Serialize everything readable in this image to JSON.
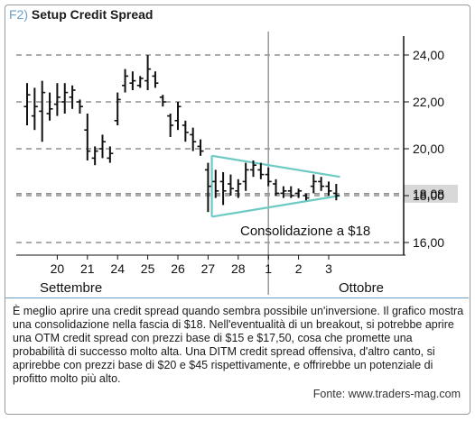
{
  "figure": {
    "tag": "F2)",
    "title": "Setup Credit Spread",
    "caption": "È meglio aprire una credit spread quando sembra possibile un'inversione. Il grafico mostra una consolidazione nella fascia di $18. Nell'eventualità di un breakout, si potrebbe aprire una OTM credit spread con prezzi base di $15 e $17,50, cosa che promette una probabilità di successo molto alta. Una DITM credit spread offensiva, d'altro canto, si aprirebbe con prezzi base di $20 e $45 rispettivamente, e offrirebbe un potenziale di profitto molto più alto.",
    "source": "Fonte: www.traders-mag.com"
  },
  "chart_data": {
    "type": "bar",
    "subtype": "ohlc",
    "ylim": [
      15.5,
      25.0
    ],
    "y_ticks": [
      "24,00",
      "22,00",
      "20,00",
      "18,00",
      "16,00"
    ],
    "y_tick_values": [
      24,
      22,
      20,
      18,
      16
    ],
    "grid": "dashed horizontal",
    "current_price_label": "18,08",
    "current_price": 18.08,
    "x_tick_labels": [
      "20",
      "21",
      "24",
      "25",
      "26",
      "27",
      "28",
      "1",
      "2",
      "3"
    ],
    "x_tick_index": [
      4,
      8,
      12,
      16,
      20,
      24,
      28,
      32,
      36,
      40
    ],
    "month_labels": [
      "Settembre",
      "Ottobre"
    ],
    "annotation": "Consolidazione a $18",
    "triangle": {
      "start_index": 24.5,
      "end_index": 41.5,
      "upper": [
        19.7,
        18.8
      ],
      "lower": [
        17.1,
        18.0
      ]
    },
    "colors": {
      "bars": "#111111",
      "triangle": "#6cc9c4",
      "price_box": "#d8d8d8",
      "accent": "#6aa0c8"
    },
    "bars": [
      {
        "h": 22.8,
        "l": 21.0,
        "o": 21.8,
        "c": 22.3
      },
      {
        "h": 22.6,
        "l": 20.8,
        "o": 21.4,
        "c": 21.8
      },
      {
        "h": 22.9,
        "l": 20.3,
        "o": 21.6,
        "c": 22.4
      },
      {
        "h": 22.4,
        "l": 21.2,
        "o": 21.5,
        "c": 21.7
      },
      {
        "h": 22.8,
        "l": 21.4,
        "o": 21.9,
        "c": 22.2
      },
      {
        "h": 22.8,
        "l": 21.5,
        "o": 22.0,
        "c": 22.4
      },
      {
        "h": 22.7,
        "l": 21.7,
        "o": 22.2,
        "c": 22.5
      },
      {
        "h": 22.1,
        "l": 21.5,
        "o": 22.0,
        "c": 21.8
      },
      {
        "h": 21.5,
        "l": 19.5,
        "o": 20.8,
        "c": 19.9
      },
      {
        "h": 20.1,
        "l": 19.3,
        "o": 19.6,
        "c": 19.9
      },
      {
        "h": 20.6,
        "l": 19.6,
        "o": 20.0,
        "c": 20.3
      },
      {
        "h": 20.1,
        "l": 19.4,
        "o": 19.6,
        "c": 19.8
      },
      {
        "h": 22.4,
        "l": 21.0,
        "o": 21.2,
        "c": 22.1
      },
      {
        "h": 23.4,
        "l": 22.4,
        "o": 22.7,
        "c": 23.1
      },
      {
        "h": 23.3,
        "l": 22.5,
        "o": 22.8,
        "c": 22.9
      },
      {
        "h": 23.1,
        "l": 22.6,
        "o": 22.7,
        "c": 23.0
      },
      {
        "h": 24.0,
        "l": 22.5,
        "o": 22.9,
        "c": 23.4
      },
      {
        "h": 23.3,
        "l": 22.6,
        "o": 23.1,
        "c": 22.8
      },
      {
        "h": 22.3,
        "l": 21.8,
        "o": 22.2,
        "c": 22.0
      },
      {
        "h": 21.5,
        "l": 20.5,
        "o": 21.4,
        "c": 21.0
      },
      {
        "h": 22.0,
        "l": 20.8,
        "o": 21.2,
        "c": 21.8
      },
      {
        "h": 21.2,
        "l": 20.3,
        "o": 21.0,
        "c": 20.7
      },
      {
        "h": 20.9,
        "l": 19.9,
        "o": 20.6,
        "c": 20.3
      },
      {
        "h": 20.4,
        "l": 19.7,
        "o": 20.1,
        "c": 19.9
      },
      {
        "h": 19.4,
        "l": 17.3,
        "o": 19.1,
        "c": 18.4
      },
      {
        "h": 19.1,
        "l": 17.9,
        "o": 18.6,
        "c": 18.2
      },
      {
        "h": 19.0,
        "l": 17.6,
        "o": 18.6,
        "c": 18.2
      },
      {
        "h": 18.9,
        "l": 18.0,
        "o": 18.5,
        "c": 18.3
      },
      {
        "h": 18.7,
        "l": 17.9,
        "o": 18.2,
        "c": 18.5
      },
      {
        "h": 19.4,
        "l": 18.2,
        "o": 18.6,
        "c": 19.1
      },
      {
        "h": 19.5,
        "l": 18.8,
        "o": 19.1,
        "c": 19.3
      },
      {
        "h": 19.4,
        "l": 18.7,
        "o": 19.1,
        "c": 18.9
      },
      {
        "h": 19.2,
        "l": 18.4,
        "o": 18.9,
        "c": 18.6
      },
      {
        "h": 18.7,
        "l": 18.0,
        "o": 18.5,
        "c": 18.1
      },
      {
        "h": 18.4,
        "l": 17.9,
        "o": 18.1,
        "c": 18.2
      },
      {
        "h": 18.4,
        "l": 17.9,
        "o": 18.2,
        "c": 18.0
      },
      {
        "h": 18.3,
        "l": 17.9,
        "o": 18.1,
        "c": 18.2
      },
      {
        "h": 18.1,
        "l": 17.8,
        "o": 18.0,
        "c": 17.9
      },
      {
        "h": 18.9,
        "l": 18.1,
        "o": 18.4,
        "c": 18.6
      },
      {
        "h": 18.8,
        "l": 18.2,
        "o": 18.6,
        "c": 18.4
      },
      {
        "h": 18.6,
        "l": 18.0,
        "o": 18.4,
        "c": 18.2
      },
      {
        "h": 18.5,
        "l": 17.8,
        "o": 18.1,
        "c": 18.0
      }
    ]
  }
}
